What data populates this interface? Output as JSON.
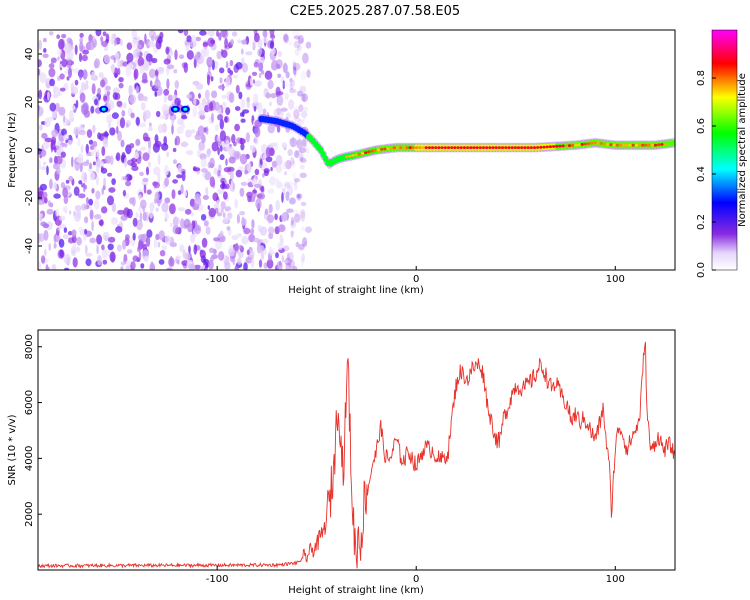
{
  "title": "C2E5.2025.287.07.58.E05",
  "colors": {
    "snr_line": "#e8322b",
    "spectrum_white": "#ffffff"
  },
  "chart_data": [
    {
      "type": "heatmap",
      "title": "C2E5.2025.287.07.58.E05",
      "xlabel": "Height of straight line (km)",
      "ylabel": "Frequency (Hz)",
      "xlim": [
        -190,
        130
      ],
      "ylim": [
        -50,
        50
      ],
      "xticks": [
        -100,
        0,
        100
      ],
      "yticks": [
        -40,
        -20,
        0,
        20,
        40
      ],
      "colorbar": {
        "label": "Normalized spectral amplitude",
        "range": [
          0,
          1
        ],
        "ticks": [
          0.0,
          0.2,
          0.4,
          0.6,
          0.8
        ],
        "colormap": [
          "#ffffff",
          "#8a2be2",
          "#0000ff",
          "#00ffff",
          "#00ff00",
          "#ffff00",
          "#ff0000",
          "#ff00ff"
        ]
      },
      "signal_track": {
        "height_km": [
          -78,
          -70,
          -62,
          -56,
          -52,
          -48,
          -44,
          -40,
          -36,
          -30,
          -20,
          -10,
          0,
          20,
          40,
          60,
          80,
          90,
          100,
          110,
          120,
          130
        ],
        "frequency_hz": [
          13,
          12,
          10,
          7,
          4,
          0,
          -6,
          -4,
          -3,
          -2,
          0,
          1,
          1,
          1,
          1,
          1,
          2,
          3,
          2,
          2,
          2,
          3
        ]
      },
      "noise_region_km": [
        -190,
        -62
      ]
    },
    {
      "type": "line",
      "xlabel": "Height of straight line (km)",
      "ylabel": "SNR (10 * v/v)",
      "xlim": [
        -190,
        130
      ],
      "ylim": [
        0,
        8600
      ],
      "xticks": [
        -100,
        0,
        100
      ],
      "yticks": [
        2000,
        4000,
        6000,
        8000
      ],
      "series": [
        {
          "name": "SNR",
          "x": [
            -190,
            -150,
            -100,
            -70,
            -60,
            -55,
            -50,
            -46,
            -44,
            -42,
            -40,
            -39,
            -38,
            -37,
            -36,
            -35,
            -34,
            -33,
            -32,
            -31,
            -30,
            -29,
            -28,
            -26,
            -24,
            -22,
            -20,
            -18,
            -16,
            -14,
            -12,
            -10,
            -8,
            -6,
            -4,
            -2,
            0,
            4,
            8,
            12,
            16,
            18,
            20,
            22,
            24,
            26,
            28,
            30,
            32,
            34,
            36,
            38,
            40,
            42,
            44,
            46,
            48,
            50,
            54,
            58,
            60,
            62,
            64,
            66,
            68,
            70,
            72,
            74,
            76,
            78,
            80,
            82,
            84,
            86,
            88,
            90,
            92,
            94,
            96,
            97,
            98,
            100,
            102,
            104,
            106,
            108,
            110,
            112,
            114,
            115,
            116,
            117,
            118,
            120,
            122,
            124,
            126,
            128,
            130
          ],
          "y": [
            150,
            160,
            170,
            180,
            250,
            500,
            900,
            1500,
            2200,
            3200,
            5200,
            6500,
            4600,
            3800,
            4200,
            6900,
            7100,
            4200,
            2400,
            1000,
            700,
            1200,
            900,
            2600,
            3000,
            3800,
            4200,
            5200,
            4200,
            3900,
            4200,
            4700,
            4100,
            3900,
            4300,
            4000,
            3700,
            4400,
            4300,
            3900,
            4200,
            5500,
            6600,
            7100,
            7000,
            6800,
            7200,
            7300,
            7400,
            6900,
            5800,
            5300,
            4700,
            4600,
            5500,
            5800,
            6300,
            6600,
            6500,
            6800,
            7000,
            7300,
            7200,
            6800,
            6500,
            6700,
            6400,
            6100,
            5900,
            5300,
            5600,
            5300,
            5400,
            5300,
            4900,
            4700,
            5200,
            5800,
            4200,
            3800,
            2000,
            4400,
            5200,
            4800,
            4300,
            4700,
            5000,
            5300,
            7300,
            8500,
            5500,
            4900,
            4200,
            4600,
            4800,
            4300,
            4400,
            4500,
            3900
          ]
        }
      ]
    }
  ]
}
